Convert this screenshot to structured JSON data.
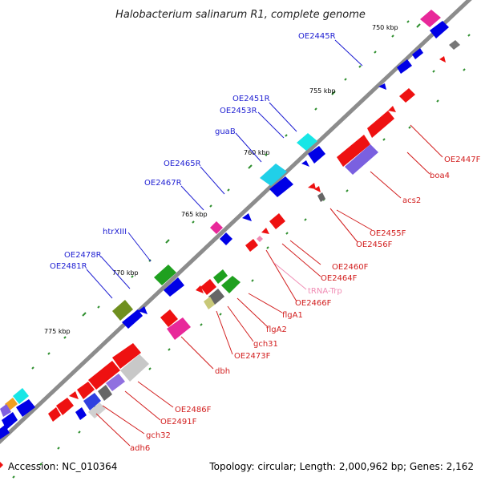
{
  "title": "Halobacterium salinarum R1, complete genome",
  "footer": {
    "accession": "Accession: NC_010364",
    "topology": "Topology: circular; Length: 2,000,962 bp; Genes: 2,162"
  },
  "kbp_ticks": [
    "750 kbp",
    "755 kbp",
    "760 kbp",
    "765 kbp",
    "770 kbp",
    "775 kbp"
  ],
  "reverse_labels": [
    "OE2445R",
    "OE2451R",
    "OE2453R",
    "guaB",
    "OE2465R",
    "OE2467R",
    "htrXIII",
    "OE2478R",
    "OE2481R"
  ],
  "forward_labels": [
    "OE2447F",
    "boa4",
    "acs2",
    "OE2455F",
    "OE2456F",
    "OE2460F",
    "OE2464F",
    "tRNA-Trp",
    "OE2466F",
    "flgA1",
    "flgA2",
    "gch31",
    "OE2473F",
    "dbh",
    "OE2486F",
    "OE2491F",
    "gch32",
    "adh6"
  ],
  "colors": {
    "reverse_label": "#1e1ed2",
    "forward_label": "#d21e1e",
    "trna_label": "#f08cb4",
    "backbone": "#8c8c8c"
  }
}
